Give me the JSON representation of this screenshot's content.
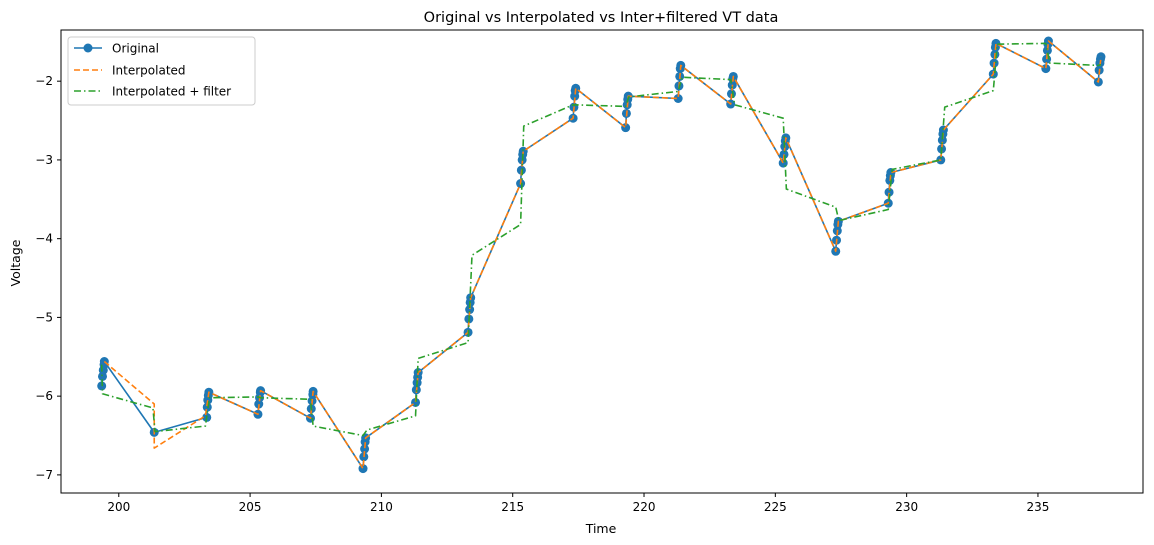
{
  "chart_data": {
    "type": "line",
    "title": "Original vs Interpolated vs Inter+filtered VT data",
    "xlabel": "Time",
    "ylabel": "Voltage",
    "xlim": [
      197.8,
      239.0
    ],
    "ylim": [
      -7.23,
      -1.35
    ],
    "xticks": [
      200,
      205,
      210,
      215,
      220,
      225,
      230,
      235
    ],
    "yticks": [
      -7,
      -6,
      -5,
      -4,
      -3,
      -2
    ],
    "grid": false,
    "legend": {
      "placement": "top-left"
    },
    "series": [
      {
        "name": "Original",
        "style": "solid-markers",
        "color": "#1f77b4",
        "points": [
          [
            199.35,
            -5.87
          ],
          [
            199.38,
            -5.75
          ],
          [
            199.41,
            -5.67
          ],
          [
            199.44,
            -5.6
          ],
          [
            199.45,
            -5.56
          ],
          [
            201.35,
            -6.46
          ],
          [
            203.35,
            -6.27
          ],
          [
            203.37,
            -6.14
          ],
          [
            203.39,
            -6.05
          ],
          [
            203.41,
            -5.99
          ],
          [
            203.43,
            -5.95
          ],
          [
            205.3,
            -6.23
          ],
          [
            205.33,
            -6.1
          ],
          [
            205.36,
            -6.02
          ],
          [
            205.39,
            -5.95
          ],
          [
            205.4,
            -5.93
          ],
          [
            207.3,
            -6.28
          ],
          [
            207.33,
            -6.16
          ],
          [
            207.36,
            -6.06
          ],
          [
            207.39,
            -5.98
          ],
          [
            207.4,
            -5.94
          ],
          [
            209.3,
            -6.92
          ],
          [
            209.33,
            -6.77
          ],
          [
            209.36,
            -6.67
          ],
          [
            209.38,
            -6.58
          ],
          [
            209.4,
            -6.53
          ],
          [
            211.3,
            -6.08
          ],
          [
            211.33,
            -5.92
          ],
          [
            211.36,
            -5.83
          ],
          [
            211.38,
            -5.76
          ],
          [
            211.4,
            -5.7
          ],
          [
            213.3,
            -5.19
          ],
          [
            213.33,
            -5.02
          ],
          [
            213.36,
            -4.9
          ],
          [
            213.38,
            -4.81
          ],
          [
            213.4,
            -4.75
          ],
          [
            215.3,
            -3.3
          ],
          [
            215.33,
            -3.13
          ],
          [
            215.36,
            -3.0
          ],
          [
            215.38,
            -2.93
          ],
          [
            215.4,
            -2.89
          ],
          [
            217.3,
            -2.47
          ],
          [
            217.33,
            -2.33
          ],
          [
            217.36,
            -2.19
          ],
          [
            217.38,
            -2.12
          ],
          [
            217.4,
            -2.09
          ],
          [
            219.3,
            -2.59
          ],
          [
            219.33,
            -2.41
          ],
          [
            219.36,
            -2.3
          ],
          [
            219.38,
            -2.23
          ],
          [
            219.4,
            -2.19
          ],
          [
            221.3,
            -2.22
          ],
          [
            221.33,
            -2.06
          ],
          [
            221.36,
            -1.94
          ],
          [
            221.38,
            -1.84
          ],
          [
            221.4,
            -1.8
          ],
          [
            223.3,
            -2.29
          ],
          [
            223.33,
            -2.16
          ],
          [
            223.36,
            -2.05
          ],
          [
            223.38,
            -1.97
          ],
          [
            223.4,
            -1.94
          ],
          [
            225.3,
            -3.04
          ],
          [
            225.33,
            -2.93
          ],
          [
            225.36,
            -2.83
          ],
          [
            225.38,
            -2.76
          ],
          [
            225.4,
            -2.72
          ],
          [
            227.3,
            -4.16
          ],
          [
            227.33,
            -4.02
          ],
          [
            227.36,
            -3.9
          ],
          [
            227.38,
            -3.82
          ],
          [
            227.4,
            -3.78
          ],
          [
            229.3,
            -3.55
          ],
          [
            229.33,
            -3.41
          ],
          [
            229.36,
            -3.26
          ],
          [
            229.38,
            -3.2
          ],
          [
            229.4,
            -3.16
          ],
          [
            231.3,
            -3.0
          ],
          [
            231.33,
            -2.86
          ],
          [
            231.36,
            -2.75
          ],
          [
            231.38,
            -2.67
          ],
          [
            231.4,
            -2.62
          ],
          [
            233.3,
            -1.91
          ],
          [
            233.33,
            -1.77
          ],
          [
            233.36,
            -1.66
          ],
          [
            233.38,
            -1.57
          ],
          [
            233.4,
            -1.52
          ],
          [
            235.3,
            -1.84
          ],
          [
            235.33,
            -1.72
          ],
          [
            235.36,
            -1.61
          ],
          [
            235.38,
            -1.53
          ],
          [
            235.4,
            -1.49
          ],
          [
            237.3,
            -2.01
          ],
          [
            237.33,
            -1.86
          ],
          [
            237.36,
            -1.77
          ],
          [
            237.38,
            -1.72
          ],
          [
            237.4,
            -1.69
          ]
        ]
      },
      {
        "name": "Interpolated",
        "style": "dashed",
        "color": "#ff7f0e",
        "points": [
          [
            199.45,
            -5.56
          ],
          [
            201.35,
            -6.1
          ],
          [
            201.35,
            -6.66
          ],
          [
            203.3,
            -6.25
          ],
          [
            203.43,
            -5.95
          ],
          [
            205.3,
            -6.23
          ],
          [
            205.4,
            -5.93
          ],
          [
            207.3,
            -6.28
          ],
          [
            207.4,
            -5.94
          ],
          [
            209.3,
            -6.92
          ],
          [
            209.4,
            -6.53
          ],
          [
            211.3,
            -6.08
          ],
          [
            211.4,
            -5.7
          ],
          [
            213.3,
            -5.19
          ],
          [
            213.4,
            -4.75
          ],
          [
            215.3,
            -3.3
          ],
          [
            215.4,
            -2.89
          ],
          [
            217.3,
            -2.47
          ],
          [
            217.4,
            -2.09
          ],
          [
            219.3,
            -2.59
          ],
          [
            219.4,
            -2.19
          ],
          [
            221.3,
            -2.22
          ],
          [
            221.4,
            -1.8
          ],
          [
            223.3,
            -2.29
          ],
          [
            223.4,
            -1.94
          ],
          [
            225.3,
            -3.04
          ],
          [
            225.4,
            -2.72
          ],
          [
            227.3,
            -4.16
          ],
          [
            227.4,
            -3.78
          ],
          [
            229.3,
            -3.55
          ],
          [
            229.4,
            -3.16
          ],
          [
            231.3,
            -3.0
          ],
          [
            231.4,
            -2.62
          ],
          [
            233.3,
            -1.91
          ],
          [
            233.4,
            -1.52
          ],
          [
            235.3,
            -1.84
          ],
          [
            235.4,
            -1.49
          ],
          [
            237.3,
            -2.01
          ],
          [
            237.4,
            -1.69
          ]
        ]
      },
      {
        "name": "Interpolated + filter",
        "style": "dashdot",
        "color": "#2ca02c",
        "points": [
          [
            199.35,
            -5.6
          ],
          [
            199.38,
            -5.97
          ],
          [
            201.3,
            -6.15
          ],
          [
            201.38,
            -6.45
          ],
          [
            203.3,
            -6.38
          ],
          [
            203.45,
            -6.02
          ],
          [
            205.3,
            -6.01
          ],
          [
            205.4,
            -6.02
          ],
          [
            207.3,
            -6.04
          ],
          [
            207.4,
            -6.38
          ],
          [
            209.3,
            -6.5
          ],
          [
            209.45,
            -6.43
          ],
          [
            211.3,
            -6.25
          ],
          [
            211.4,
            -5.52
          ],
          [
            213.3,
            -5.32
          ],
          [
            213.45,
            -4.21
          ],
          [
            215.3,
            -3.82
          ],
          [
            215.42,
            -2.57
          ],
          [
            217.3,
            -2.3
          ],
          [
            219.3,
            -2.32
          ],
          [
            219.42,
            -2.2
          ],
          [
            221.3,
            -2.13
          ],
          [
            221.45,
            -1.95
          ],
          [
            223.3,
            -1.98
          ],
          [
            223.45,
            -2.3
          ],
          [
            225.3,
            -2.47
          ],
          [
            225.42,
            -3.37
          ],
          [
            227.3,
            -3.6
          ],
          [
            227.42,
            -3.77
          ],
          [
            229.3,
            -3.63
          ],
          [
            229.45,
            -3.12
          ],
          [
            231.3,
            -3.0
          ],
          [
            231.45,
            -2.33
          ],
          [
            233.3,
            -2.12
          ],
          [
            233.45,
            -1.53
          ],
          [
            235.3,
            -1.52
          ],
          [
            235.45,
            -1.77
          ],
          [
            237.3,
            -1.8
          ],
          [
            237.4,
            -1.79
          ]
        ]
      }
    ]
  }
}
